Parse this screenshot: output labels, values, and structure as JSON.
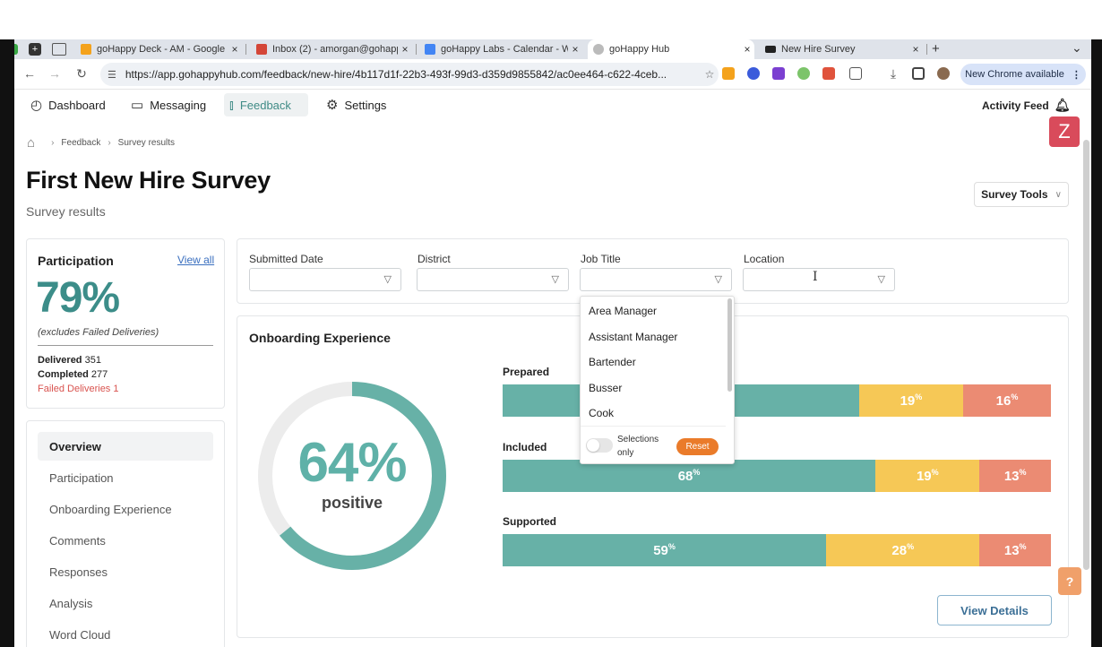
{
  "browser": {
    "tabs": [
      {
        "title": "goHappy Deck - AM - Google",
        "close": "×"
      },
      {
        "title": "Inbox (2) - amorgan@gohapp",
        "close": "×"
      },
      {
        "title": "goHappy Labs - Calendar - W",
        "close": "×"
      },
      {
        "title": "goHappy Hub",
        "close": "×"
      },
      {
        "title": "New Hire Survey",
        "close": "×"
      }
    ],
    "new_tab": "+",
    "tab_menu": "⌄",
    "url": "https://app.gohappyhub.com/feedback/new-hire/4b117d1f-22b3-493f-99d3-d359d9855842/ac0ee464-c622-4ceb...",
    "new_chrome": "New Chrome available",
    "more": "⋮"
  },
  "nav": {
    "items": [
      {
        "label": "Dashboard",
        "icon": "dashboard-icon"
      },
      {
        "label": "Messaging",
        "icon": "messaging-icon"
      },
      {
        "label": "Feedback",
        "icon": "feedback-icon"
      },
      {
        "label": "Settings",
        "icon": "gear-icon"
      }
    ],
    "activity_feed": "Activity Feed",
    "z_badge": "Z"
  },
  "breadcrumb": {
    "items": [
      "Feedback",
      "Survey results"
    ]
  },
  "page": {
    "title": "First New Hire Survey",
    "subtitle": "Survey results",
    "survey_tools": "Survey Tools"
  },
  "participation": {
    "title": "Participation",
    "view_all": "View all",
    "percent": "79%",
    "note": "(excludes Failed Deliveries)",
    "delivered_label": "Delivered",
    "delivered_value": "351",
    "completed_label": "Completed",
    "completed_value": "277",
    "failed": "Failed Deliveries 1"
  },
  "sidebar": {
    "items": [
      {
        "label": "Overview"
      },
      {
        "label": "Participation"
      },
      {
        "label": "Onboarding Experience"
      },
      {
        "label": "Comments"
      },
      {
        "label": "Responses"
      },
      {
        "label": "Analysis"
      },
      {
        "label": "Word Cloud"
      }
    ]
  },
  "filters": [
    {
      "label": "Submitted Date"
    },
    {
      "label": "District"
    },
    {
      "label": "Job Title"
    },
    {
      "label": "Location"
    }
  ],
  "dropdown": {
    "options": [
      "Area Manager",
      "Assistant Manager",
      "Bartender",
      "Busser",
      "Cook"
    ],
    "selections_only": "Selections only",
    "reset": "Reset"
  },
  "onboarding": {
    "title": "Onboarding Experience",
    "donut_value": "64%",
    "donut_label": "positive",
    "view_details": "View Details",
    "colors": {
      "positive": "#67b1a7",
      "neutral": "#f6c856",
      "negative": "#eb8b73"
    }
  },
  "chart_data": {
    "type": "bar",
    "stacked": true,
    "orientation": "horizontal",
    "categories": [
      "Prepared",
      "Included",
      "Supported"
    ],
    "series": [
      {
        "values": [
          65,
          68,
          59
        ]
      },
      {
        "values": [
          19,
          19,
          28
        ]
      },
      {
        "values": [
          16,
          13,
          13
        ]
      }
    ],
    "value_labels": [
      [
        "",
        "19%",
        "16%"
      ],
      [
        "68%",
        "19%",
        "13%"
      ],
      [
        "59%",
        "28%",
        "13%"
      ]
    ],
    "donut": {
      "value": 64
    }
  },
  "help": "?"
}
